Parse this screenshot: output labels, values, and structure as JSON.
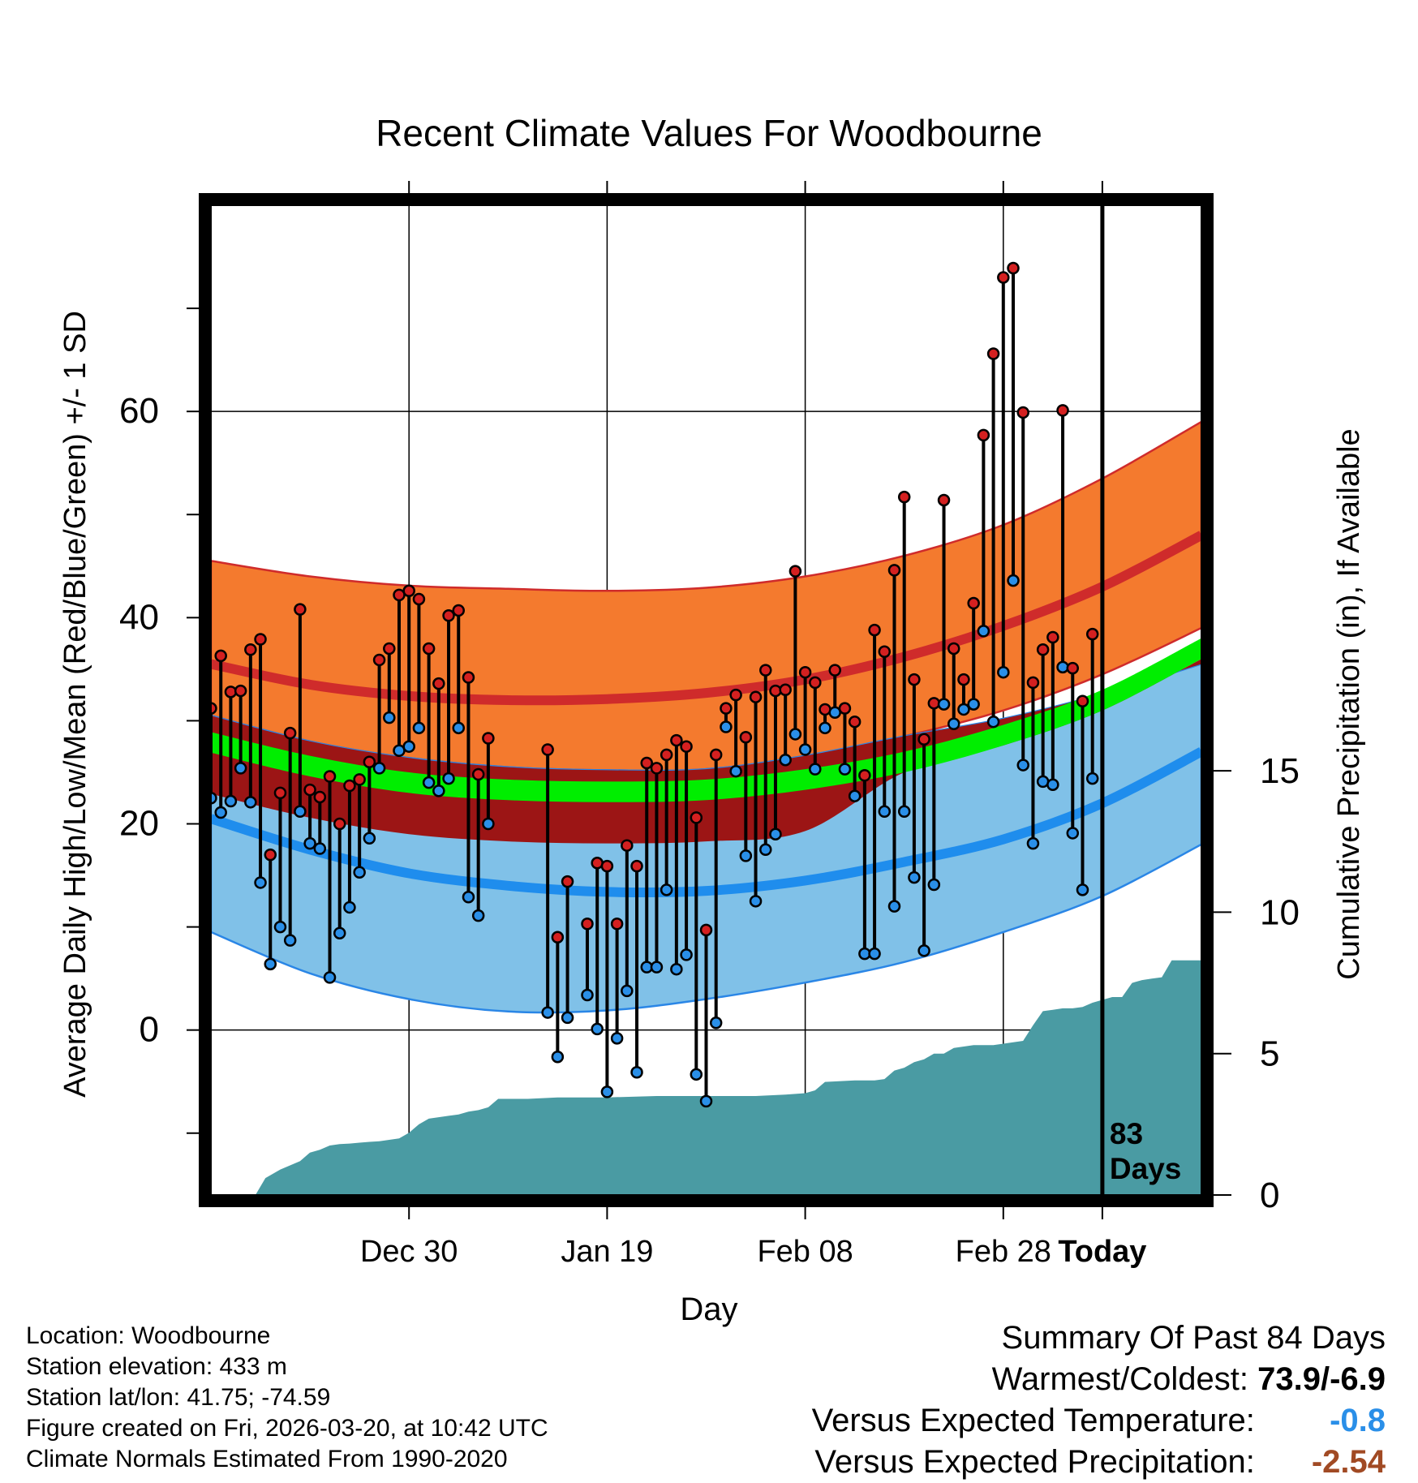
{
  "chart_data": {
    "type": "line",
    "title": "Recent Climate Values For Woodbourne",
    "xlabel": "Day",
    "ylabel": "Average Daily High/Low/Mean (Red/Blue/Green) +/- 1 SD",
    "y2label": "Cumulative Precipitation (in), If Available",
    "xlim": [
      -10,
      90
    ],
    "ylim": [
      -16,
      80
    ],
    "y2lim": [
      0,
      35
    ],
    "x_ticks": [
      {
        "x": 10,
        "label": "Dec 30"
      },
      {
        "x": 30,
        "label": "Jan 19"
      },
      {
        "x": 50,
        "label": "Feb 08"
      },
      {
        "x": 70,
        "label": "Feb 28"
      },
      {
        "x": 80,
        "label": "Today"
      }
    ],
    "y_ticks": [
      0,
      20,
      40,
      60
    ],
    "y2_ticks": [
      0,
      5,
      10,
      15
    ],
    "today_label": "83",
    "today_sublabel": "Days",
    "normals": {
      "x": [
        -10,
        0,
        10,
        20,
        30,
        40,
        50,
        60,
        70,
        80,
        90
      ],
      "high_upper": [
        45.5,
        44.0,
        43.1,
        42.8,
        42.6,
        42.9,
        44.0,
        46.0,
        49.0,
        53.5,
        59.0
      ],
      "high_mean": [
        35.5,
        33.5,
        32.4,
        32.0,
        32.1,
        32.7,
        34.0,
        36.2,
        39.2,
        43.0,
        48.0
      ],
      "high_lower": [
        30.5,
        28.0,
        26.4,
        25.5,
        25.2,
        25.3,
        26.6,
        28.5,
        31.0,
        34.5,
        39.0
      ],
      "mean_upper": [
        28.9,
        26.6,
        25.0,
        24.3,
        24.1,
        24.3,
        25.3,
        27.0,
        29.6,
        33.0,
        38.0
      ],
      "mean_lower": [
        26.9,
        24.6,
        23.0,
        22.3,
        22.1,
        22.3,
        23.3,
        25.0,
        27.6,
        31.0,
        36.0
      ],
      "low_upper": [
        30.5,
        28.0,
        26.4,
        25.5,
        25.2,
        25.3,
        26.6,
        28.5,
        30.2,
        32.6,
        35.5
      ],
      "low_mean": [
        20.5,
        17.5,
        15.2,
        14.0,
        13.4,
        13.5,
        14.5,
        16.3,
        18.5,
        22.0,
        27.0
      ],
      "low_lower": [
        9.5,
        5.5,
        3.0,
        1.8,
        1.9,
        3.0,
        4.6,
        6.6,
        9.5,
        13.0,
        18.0
      ],
      "colors": {
        "high_band": "#f47a2e",
        "high_line": "#cf2b2b",
        "low_band": "#80c1e8",
        "low_line": "#1f8ded",
        "low_edge": "#2a86e6",
        "mean_band": "#00ee00",
        "overlap_band": "#9c1515"
      }
    },
    "daily": {
      "x": [
        -10,
        -9,
        -8,
        -7,
        -6,
        -5,
        -4,
        -3,
        -2,
        -1,
        0,
        1,
        2,
        3,
        4,
        5,
        6,
        7,
        8,
        9,
        10,
        11,
        12,
        13,
        14,
        15,
        16,
        17,
        18,
        19,
        20,
        21,
        22,
        23,
        24,
        25,
        26,
        27,
        28,
        29,
        30,
        31,
        32,
        33,
        34,
        35,
        36,
        37,
        38,
        39,
        40,
        41,
        42,
        43,
        44,
        45,
        46,
        47,
        48,
        49,
        50,
        51,
        52,
        53,
        54,
        55,
        56,
        57,
        58,
        59,
        60,
        61,
        62,
        63,
        64,
        65,
        66,
        67,
        68,
        69,
        70,
        71,
        72,
        73,
        74,
        75,
        76,
        77,
        78,
        79
      ],
      "high": [
        31.2,
        36.3,
        32.8,
        32.9,
        36.9,
        37.9,
        17.0,
        23.0,
        28.8,
        40.8,
        23.3,
        22.6,
        24.6,
        20.0,
        23.7,
        24.3,
        26.0,
        35.9,
        37.0,
        42.2,
        42.6,
        41.8,
        37.0,
        33.6,
        40.2,
        40.7,
        34.2,
        24.8,
        28.3,
        null,
        null,
        null,
        null,
        null,
        27.2,
        9.0,
        14.4,
        null,
        10.3,
        16.2,
        15.9,
        10.3,
        17.9,
        15.9,
        25.9,
        25.4,
        26.7,
        28.1,
        27.5,
        20.6,
        9.7,
        26.7,
        31.2,
        32.5,
        28.4,
        32.3,
        34.9,
        32.9,
        33.0,
        44.5,
        34.7,
        33.7,
        31.1,
        34.9,
        31.2,
        29.9,
        24.7,
        38.8,
        36.7,
        44.6,
        51.7,
        34.0,
        28.2,
        31.7,
        51.4,
        37.0,
        34.0,
        41.4,
        57.7,
        65.6,
        73.0,
        73.9,
        59.9,
        33.7,
        36.9,
        38.1,
        60.1,
        35.1,
        31.9,
        38.4
      ],
      "low": [
        22.5,
        21.1,
        22.2,
        25.4,
        22.1,
        14.3,
        6.4,
        10.0,
        8.7,
        21.2,
        18.1,
        17.6,
        5.1,
        9.4,
        11.9,
        15.3,
        18.6,
        25.4,
        30.3,
        27.1,
        27.5,
        29.3,
        24.0,
        23.2,
        24.4,
        29.3,
        12.9,
        11.1,
        20.0,
        null,
        null,
        null,
        null,
        null,
        1.7,
        -2.6,
        1.2,
        null,
        3.4,
        0.1,
        -6.0,
        -0.8,
        3.8,
        -4.1,
        6.1,
        6.1,
        13.6,
        5.9,
        7.3,
        -4.3,
        -6.9,
        0.7,
        29.4,
        25.1,
        16.9,
        12.5,
        17.5,
        19.0,
        26.2,
        28.7,
        27.2,
        25.3,
        29.3,
        30.8,
        25.3,
        22.7,
        7.4,
        7.4,
        21.2,
        12.0,
        21.2,
        14.8,
        7.7,
        14.1,
        31.6,
        29.7,
        31.1,
        31.6,
        38.7,
        29.9,
        34.7,
        43.6,
        25.7,
        18.1,
        24.1,
        23.8,
        35.2,
        19.1,
        13.6,
        24.4
      ],
      "colors": {
        "high": "#d42020",
        "low": "#2a8fe8"
      }
    },
    "precip": {
      "x": [
        -10,
        -5.5,
        -4.5,
        -3,
        -1,
        0,
        1,
        2,
        3,
        4,
        5,
        6,
        7,
        8,
        9,
        10,
        11,
        12,
        13,
        14,
        15,
        16,
        17,
        18,
        19,
        20,
        21,
        22,
        25,
        30,
        35,
        40,
        45,
        48,
        50,
        51,
        52,
        55,
        57,
        58,
        59,
        60,
        61,
        62,
        63,
        64,
        65,
        66,
        67,
        68,
        69,
        70,
        71,
        72,
        73,
        74,
        75,
        76,
        77,
        78,
        79,
        80,
        81,
        82,
        83,
        84,
        85,
        86,
        87,
        88,
        89,
        90
      ],
      "values": [
        0,
        0,
        0.6,
        0.9,
        1.2,
        1.5,
        1.6,
        1.75,
        1.8,
        1.82,
        1.85,
        1.88,
        1.9,
        1.95,
        2.0,
        2.2,
        2.5,
        2.7,
        2.75,
        2.8,
        2.85,
        2.95,
        3.0,
        3.1,
        3.4,
        3.4,
        3.4,
        3.4,
        3.45,
        3.45,
        3.5,
        3.5,
        3.5,
        3.55,
        3.6,
        3.7,
        4.0,
        4.05,
        4.05,
        4.1,
        4.4,
        4.5,
        4.7,
        4.8,
        5.0,
        5.0,
        5.2,
        5.25,
        5.3,
        5.3,
        5.3,
        5.35,
        5.4,
        5.45,
        6.0,
        6.5,
        6.55,
        6.6,
        6.6,
        6.65,
        6.8,
        6.9,
        7.0,
        7.0,
        7.5,
        7.6,
        7.65,
        7.7,
        8.3,
        8.3,
        8.3,
        8.3
      ],
      "color": "#4a9ba3"
    }
  },
  "info": {
    "location": "Location: Woodbourne",
    "elevation": "Station elevation: 433 m",
    "latlon": "Station lat/lon: 41.75; -74.59",
    "created": "Figure created on Fri, 2026-03-20, at 10:42 UTC",
    "normals": "Climate Normals Estimated From 1990-2020"
  },
  "summary": {
    "title": "Summary Of Past 84 Days",
    "warmest_label": "Warmest/Coldest:",
    "warmest_value": "73.9/-6.9",
    "temp_label": "Versus Expected Temperature:",
    "temp_value": "-0.8",
    "temp_color": "#2a8fe8",
    "precip_label": "Versus Expected Precipitation:",
    "precip_value": "-2.54",
    "precip_color": "#a14a24"
  }
}
